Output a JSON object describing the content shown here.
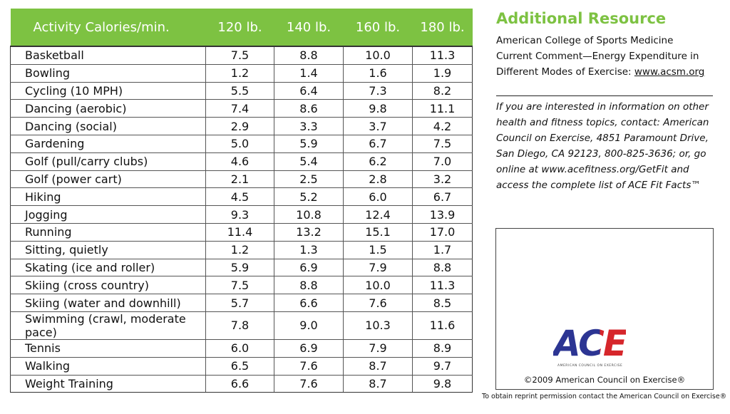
{
  "table": {
    "columns": [
      "Activity Calories/min.",
      "120 lb.",
      "140 lb.",
      "160 lb.",
      "180 lb."
    ],
    "rows": [
      [
        "Basketball",
        "7.5",
        "8.8",
        "10.0",
        "11.3"
      ],
      [
        "Bowling",
        "1.2",
        "1.4",
        "1.6",
        "1.9"
      ],
      [
        "Cycling (10 MPH)",
        "5.5",
        "6.4",
        "7.3",
        "8.2"
      ],
      [
        "Dancing (aerobic)",
        "7.4",
        "8.6",
        "9.8",
        "11.1"
      ],
      [
        "Dancing (social)",
        "2.9",
        "3.3",
        "3.7",
        "4.2"
      ],
      [
        "Gardening",
        "5.0",
        "5.9",
        "6.7",
        "7.5"
      ],
      [
        "Golf (pull/carry clubs)",
        "4.6",
        "5.4",
        "6.2",
        "7.0"
      ],
      [
        "Golf (power cart)",
        "2.1",
        "2.5",
        "2.8",
        "3.2"
      ],
      [
        "Hiking",
        "4.5",
        "5.2",
        "6.0",
        "6.7"
      ],
      [
        "Jogging",
        "9.3",
        "10.8",
        "12.4",
        "13.9"
      ],
      [
        "Running",
        "11.4",
        "13.2",
        "15.1",
        "17.0"
      ],
      [
        "Sitting, quietly",
        "1.2",
        "1.3",
        "1.5",
        "1.7"
      ],
      [
        "Skating (ice and roller)",
        "5.9",
        "6.9",
        "7.9",
        "8.8"
      ],
      [
        "Skiing (cross country)",
        "7.5",
        "8.8",
        "10.0",
        "11.3"
      ],
      [
        "Skiing (water and downhill)",
        "5.7",
        "6.6",
        "7.6",
        "8.5"
      ],
      [
        "Swimming (crawl, moderate pace)",
        "7.8",
        "9.0",
        "10.3",
        "11.6"
      ],
      [
        "Tennis",
        "6.0",
        "6.9",
        "7.9",
        "8.9"
      ],
      [
        "Walking",
        "6.5",
        "7.6",
        "8.7",
        "9.7"
      ],
      [
        "Weight Training",
        "6.6",
        "7.6",
        "8.7",
        "9.8"
      ]
    ]
  },
  "resource": {
    "title": "Additional Resource",
    "text": "American College of Sports Medicine Current Comment—Energy Expenditure in Different Modes of Exercise: ",
    "link": "www.acsm.org"
  },
  "contact": "If you are interested in information on other health and fitness topics, contact: American Council on Exercise, 4851 Paramount Drive, San Diego, CA 92123, 800-825-3636; or, go online at www.acefitness.org/GetFit and access the complete list of ACE Fit Facts™",
  "logo": {
    "text": "ACE",
    "tagline": "AMERICAN COUNCIL ON EXERCISE"
  },
  "copyright": "©2009 American Council on Exercise®",
  "reprint": "To obtain reprint permission contact the American Council on Exercise®"
}
